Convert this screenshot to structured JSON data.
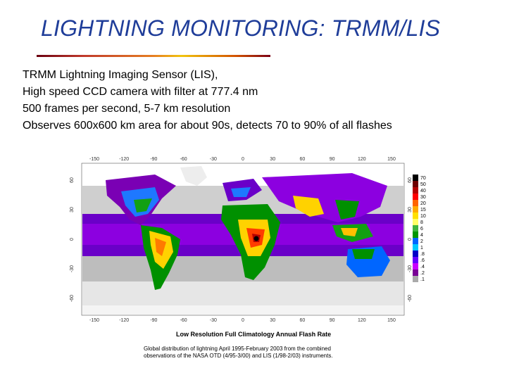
{
  "slide": {
    "title": "LIGHTNING MONITORING: TRMM/LIS",
    "bullets": [
      "TRMM Lightning Imaging Sensor (LIS),",
      "High speed CCD camera with filter at 777.4 nm",
      "500 frames per second, 5-7 km resolution",
      "Observes 600x600 km area for about 90s, detects 70 to 90% of all flashes"
    ]
  },
  "map": {
    "title": "Low Resolution Full Climatology Annual Flash Rate",
    "caption_lines": [
      "Global distribution of lightning April 1995-February 2003 from the combined",
      "observations of the NASA OTD (4/95-3/00) and LIS (1/98-2/03) instruments."
    ],
    "lon_ticks": [
      "-150",
      "-120",
      "-90",
      "-60",
      "-30",
      "0",
      "30",
      "60",
      "90",
      "120",
      "150"
    ],
    "lat_ticks": [
      "60",
      "30",
      "0",
      "-30",
      "-60"
    ],
    "colorbar": {
      "labels": [
        "70",
        "50",
        "40",
        "30",
        "20",
        "15",
        "10",
        "8",
        "6",
        "4",
        "2",
        "1",
        ".8",
        ".6",
        ".4",
        ".2",
        ".1"
      ],
      "colors": [
        "#000000",
        "#6e0000",
        "#b40000",
        "#ff0000",
        "#ff6400",
        "#ffaa00",
        "#ffe000",
        "#ffff66",
        "#3cb43c",
        "#009600",
        "#0066ff",
        "#00c8ff",
        "#0000c8",
        "#6400ff",
        "#c800ff",
        "#7a0096",
        "#aaaaaa"
      ]
    }
  }
}
